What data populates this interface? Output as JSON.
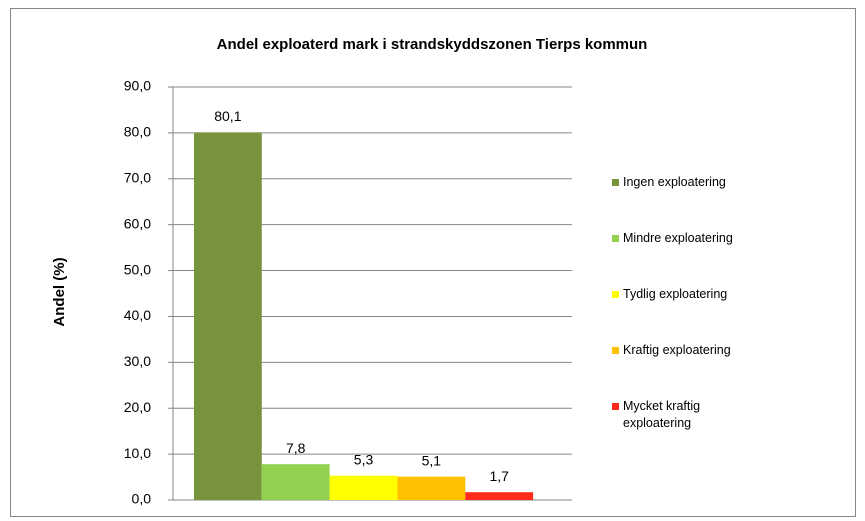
{
  "chart_data": {
    "type": "bar",
    "title": "Andel exploaterd mark i strandskyddszonen Tierps kommun",
    "y_label": "Andel (%)",
    "categories": [
      null
    ],
    "series": [
      {
        "name": "Ingen exploatering",
        "color": "#77933c",
        "values": [
          80.1
        ],
        "value_labels": [
          "80,1"
        ]
      },
      {
        "name": "Mindre exploatering",
        "color": "#92d050",
        "values": [
          7.8
        ],
        "value_labels": [
          "7,8"
        ]
      },
      {
        "name": "Tydlig exploatering",
        "color": "#ffff00",
        "values": [
          5.3
        ],
        "value_labels": [
          "5,3"
        ]
      },
      {
        "name": "Kraftig exploatering",
        "color": "#ffc000",
        "values": [
          5.1
        ],
        "value_labels": [
          "5,1"
        ]
      },
      {
        "name": "Mycket kraftig exploatering",
        "color": "#ff2a1a",
        "values": [
          1.7
        ],
        "value_labels": [
          "1,7"
        ]
      }
    ],
    "ylim": [
      0,
      90
    ],
    "yticks": [
      {
        "value": 0,
        "label": "0,0"
      },
      {
        "value": 10,
        "label": "10,0"
      },
      {
        "value": 20,
        "label": "20,0"
      },
      {
        "value": 30,
        "label": "30,0"
      },
      {
        "value": 40,
        "label": "40,0"
      },
      {
        "value": 50,
        "label": "50,0"
      },
      {
        "value": 60,
        "label": "60,0"
      },
      {
        "value": 70,
        "label": "70,0"
      },
      {
        "value": 80,
        "label": "80,0"
      },
      {
        "value": 90,
        "label": "90,0"
      }
    ],
    "grid": true,
    "legend": "right"
  }
}
